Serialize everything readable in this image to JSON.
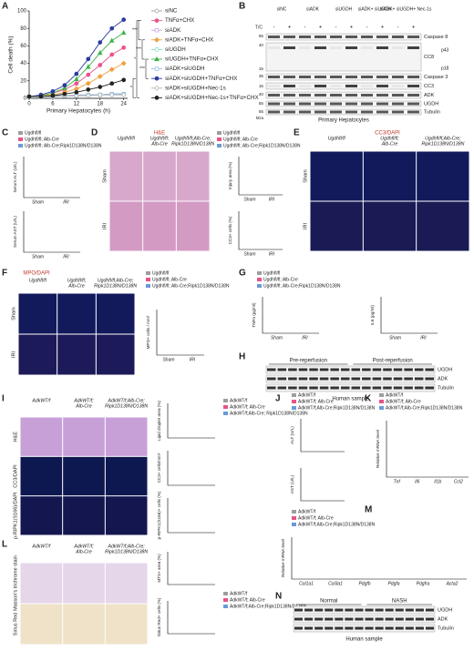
{
  "chart_data": [
    {
      "type": "line",
      "letter": "A",
      "y_label": "Cell death (%)",
      "x_label": "Primary Hepatocytes (h)",
      "x": [
        0,
        3,
        6,
        9,
        12,
        15,
        18,
        21,
        24
      ],
      "xlim": [
        0,
        25
      ],
      "xticks": [
        0,
        6,
        12,
        18,
        24
      ],
      "ylim": [
        0,
        100
      ],
      "yticks": [
        0,
        20,
        40,
        60,
        80,
        100
      ],
      "significance": [
        "***",
        "***",
        "***",
        "*",
        "*"
      ],
      "series": [
        {
          "name": "siNC",
          "color": "#9e9e9e",
          "marker": "circle-open",
          "values": [
            2,
            2,
            3,
            3,
            3,
            4,
            4,
            5,
            5
          ]
        },
        {
          "name": "TNFα+CHX",
          "color": "#e8528a",
          "marker": "circle",
          "values": [
            2,
            3,
            6,
            10,
            17,
            27,
            38,
            50,
            58
          ]
        },
        {
          "name": "siADK",
          "color": "#c9a0dc",
          "marker": "square-open",
          "values": [
            2,
            2,
            3,
            3,
            4,
            4,
            4,
            5,
            5
          ]
        },
        {
          "name": "siADK+TNFα+CHX",
          "color": "#f0a040",
          "marker": "diamond",
          "values": [
            2,
            3,
            4,
            7,
            11,
            17,
            25,
            33,
            40
          ]
        },
        {
          "name": "siUGDH",
          "color": "#7fd3c0",
          "marker": "circle-open",
          "values": [
            2,
            2,
            3,
            3,
            3,
            4,
            4,
            4,
            5
          ]
        },
        {
          "name": "siUGDH+TNFα+CHX",
          "color": "#3db34a",
          "marker": "triangle",
          "values": [
            2,
            3,
            6,
            12,
            22,
            36,
            52,
            66,
            75
          ]
        },
        {
          "name": "siADK+siUGDH",
          "color": "#8fbce6",
          "marker": "square-open",
          "values": [
            2,
            2,
            2,
            3,
            3,
            4,
            4,
            5,
            5
          ]
        },
        {
          "name": "siADK+siUGDH+TNFα+CHX",
          "color": "#2b3a9e",
          "marker": "circle",
          "values": [
            2,
            4,
            8,
            15,
            28,
            45,
            64,
            80,
            90
          ]
        },
        {
          "name": "siADK+siUGDH+Nec-1s",
          "color": "#b0b0b0",
          "marker": "diamond-open",
          "values": [
            2,
            2,
            2,
            3,
            3,
            3,
            4,
            4,
            4
          ]
        },
        {
          "name": "siADK+siUGDH+Nec-1s+TNFα+CHX",
          "color": "#222222",
          "marker": "circle",
          "values": [
            2,
            2,
            3,
            5,
            7,
            10,
            13,
            17,
            21
          ]
        }
      ]
    }
  ],
  "figure": {
    "legend_colors": [
      "#9e9e9e",
      "#e8528a",
      "#6a9ad6"
    ],
    "B": {
      "letter": "B",
      "lanes": [
        "siNC",
        "siADK",
        "siUGDH",
        "siADK+ siUGDH",
        "siADK+ siUGDH+ Nec-1s"
      ],
      "tc": "T/C",
      "signs": [
        "-",
        "+",
        "-",
        "+",
        "-",
        "+",
        "-",
        "+",
        "-",
        "+"
      ],
      "bands": [
        "Caspase 8",
        "CC8",
        "Caspase 3",
        "CC3",
        "ADK",
        "UGDH",
        "Tubulin"
      ],
      "sub_bands": [
        "p43",
        "p18"
      ],
      "markers": [
        "55",
        "40",
        "15",
        "35",
        "15",
        "40",
        "55",
        "55"
      ],
      "kda": "kDa",
      "footer": "Primary Hepatocytes"
    },
    "C": {
      "letter": "C",
      "legend": [
        "Ugdhfl/fl",
        "Ugdhfl/fl; Alb-Cre",
        "Ugdhfl/fl; Alb-Cre;Ripk1D138N/D138N"
      ],
      "y_labels": [
        "Serum ALT (U/L)",
        "Serum AST (U/L)"
      ],
      "categories": [
        "Sham",
        "IRI"
      ]
    },
    "D": {
      "letter": "D",
      "header": "H&E",
      "columns": [
        [
          "Ugdhfl/fl"
        ],
        [
          "Ugdhfl/fl;",
          "Alb-Cre"
        ],
        [
          "Ugdhfl/fl;Alb-Cre;",
          "Ripk1D138N/D138N"
        ]
      ],
      "rows": [
        "Sham",
        "IRI"
      ],
      "row_colors": [
        "#d8a8cc",
        "#d39ac4"
      ],
      "legend": [
        "Ugdhfl/fl",
        "Ugdhfl/fl; Alb-Cre",
        "Ugdhfl/fl; Alb-Cre;Ripk1D138N/D138N"
      ],
      "y_labels": [
        "Injury area (%)",
        "CC3+ cells (%)"
      ],
      "categories": [
        "Sham",
        "IRI"
      ]
    },
    "E": {
      "letter": "E",
      "header": "CC3/DAPI",
      "columns": [
        [
          "Ugdhfl/fl"
        ],
        [
          "Ugdhfl/fl;",
          "Alb-Cre"
        ],
        [
          "Ugdhfl/fl;Alb-Cre;",
          "Ripk1D138N/D138N"
        ]
      ],
      "rows": [
        "Sham",
        "IRI"
      ],
      "row_colors": [
        "#121a5c",
        "#1a1a55"
      ]
    },
    "F": {
      "letter": "F",
      "header": "MPO/DAPI",
      "columns": [
        [
          "Ugdhfl/fl"
        ],
        [
          "Ugdhfl/fl;",
          "Alb-Cre"
        ],
        [
          "Ugdhfl/fl;Alb-Cre;",
          "Ripk1D138N/D138N"
        ]
      ],
      "rows": [
        "Sham",
        "IRI"
      ],
      "row_colors": [
        "#121a5c",
        "#1c1a58"
      ],
      "legend": [
        "Ugdhfl/fl",
        "Ugdhfl/fl; Alb-Cre",
        "Ugdhfl/fl; Alb-Cre;Ripk1D138N/D138N"
      ],
      "y_labels": [
        "MPO+ cells / mm²"
      ],
      "categories": [
        "Sham",
        "IRI"
      ]
    },
    "G": {
      "letter": "G",
      "legend": [
        "Ugdhfl/fl",
        "Ugdhfl/fl; Alb-Cre",
        "Ugdhfl/fl; Alb-Cre;Ripk1D138N/D138N"
      ],
      "y_labels": [
        "TNFα (pg/ml)",
        "IL6 (pg/ml)"
      ],
      "categories": [
        "Sham",
        "IRI"
      ]
    },
    "H": {
      "letter": "H",
      "groups": [
        "Pre-reperfusion",
        "Post-reperfusion"
      ],
      "bands": [
        "UGDH",
        "ADK",
        "Tubulin"
      ],
      "footer": "Human sample"
    },
    "I": {
      "letter": "I",
      "columns": [
        [
          "AdkWT/f"
        ],
        [
          "AdkWT/f;",
          "Alb-Cre"
        ],
        [
          "AdkWT/f;Alb-Cre;",
          "Ripk1D138N/D138N"
        ]
      ],
      "rows": [
        "H&E",
        "CC3/DAPI",
        "p-RIPK1(S166)/DAPI"
      ],
      "row_colors": [
        "#c8a0d8",
        "#0e1850",
        "#141650"
      ],
      "legend": [
        "AdkWT/f",
        "AdkWT/f; Alb-Cre",
        "AdkWT/f;Alb-Cre; Ripk1D138N/D138N"
      ],
      "y_labels": [
        "Lipid droplet area (%)",
        "CC3+ cells/mm²",
        "p-RIPK1(S166)+ cells (%)"
      ]
    },
    "J": {
      "letter": "J",
      "legend": [
        "AdkWT/f",
        "AdkWT/f; Alb-Cre",
        "AdkWT/f;Alb-Cre;Ripk1D138N/D138N"
      ],
      "y_labels": [
        "ALT (U/L)",
        "AST (U/L)"
      ]
    },
    "K": {
      "letter": "K",
      "legend": [
        "AdkWT/f",
        "AdkWT/f; Alb-Cre",
        "AdkWT/f;Alb-Cre;Ripk1D138N/D138N"
      ],
      "y_labels": [
        "Relative mRNA level"
      ],
      "categories": [
        "Tnf",
        "Il6",
        "Il1b",
        "Ccl2"
      ]
    },
    "L": {
      "letter": "L",
      "columns": [
        [
          "AdkWT/f"
        ],
        [
          "AdkWT/f;",
          "Alb-Cre"
        ],
        [
          "AdkWT/f;Alb-Cre;",
          "Ripk1D138N/D138N"
        ]
      ],
      "rows": [
        "Masson's trichrome stain",
        "Sirius Red"
      ],
      "row_colors": [
        "#e6d6ea",
        "#efe2c8"
      ],
      "legend": [
        "AdkWT/f",
        "AdkWT/f; Alb-Cre",
        "AdkWT/f;Alb-Cre;Ripk1D138N/D138N"
      ],
      "y_labels": [
        "MTS+ area (%)",
        "Sirius Red+ cells (%)"
      ]
    },
    "M": {
      "letter": "M",
      "legend": [
        "AdkWT/f",
        "AdkWT/f; Alb-Cre",
        "AdkWT/f;Alb-Cre;Ripk1D138N/D138N"
      ],
      "y_labels": [
        "Relative mRNA level"
      ],
      "categories": [
        "Col1a1",
        "Col3a1",
        "Pdgfb",
        "Pdgfa",
        "Pdgfra",
        "Acta2"
      ]
    },
    "N": {
      "letter": "N",
      "groups": [
        "Normal",
        "NASH"
      ],
      "bands": [
        "UGDH",
        "ADK",
        "Tubulin"
      ],
      "footer": "Human sample"
    }
  }
}
